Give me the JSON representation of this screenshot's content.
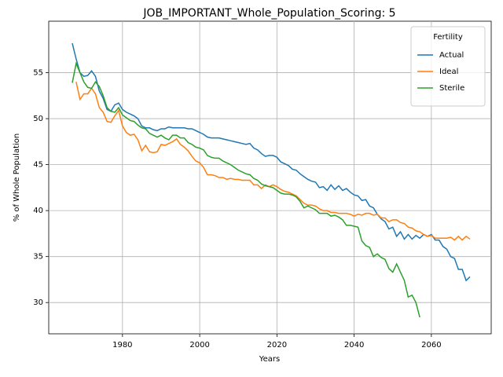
{
  "chart_data": {
    "type": "line",
    "title": "JOB_IMPORTANT_Whole_Population_Scoring: 5",
    "xlabel": "Years",
    "ylabel": "% of Whole Population",
    "xlim": [
      1960.9,
      2075.5
    ],
    "ylim": [
      26.6,
      60.6
    ],
    "xticks": [
      1980,
      2000,
      2020,
      2040,
      2060
    ],
    "yticks": [
      30,
      35,
      40,
      45,
      50,
      55
    ],
    "grid": true,
    "legend_title": "Fertility",
    "legend_loc": "upper right",
    "series": [
      {
        "name": "Actual",
        "color": "#1f77b4",
        "x": [
          1967,
          1968,
          1969,
          1970,
          1971,
          1972,
          1973,
          1974,
          1975,
          1976,
          1977,
          1978,
          1979,
          1980,
          1981,
          1982,
          1983,
          1984,
          1985,
          1986,
          1987,
          1988,
          1989,
          1990,
          1991,
          1992,
          1993,
          1994,
          1995,
          1996,
          1997,
          1998,
          1999,
          2000,
          2001,
          2002,
          2003,
          2004,
          2005,
          2006,
          2007,
          2008,
          2009,
          2010,
          2011,
          2012,
          2013,
          2014,
          2015,
          2016,
          2017,
          2018,
          2019,
          2020,
          2021,
          2022,
          2023,
          2024,
          2025,
          2026,
          2027,
          2028,
          2029,
          2030,
          2031,
          2032,
          2033,
          2034,
          2035,
          2036,
          2037,
          2038,
          2039,
          2040,
          2041,
          2042,
          2043,
          2044,
          2045,
          2046,
          2047,
          2048,
          2049,
          2050,
          2051,
          2052,
          2053,
          2054,
          2055,
          2056,
          2057,
          2058,
          2059,
          2060,
          2061,
          2062,
          2063,
          2064,
          2065,
          2066,
          2067,
          2068,
          2069,
          2070
        ],
        "values": [
          58.2,
          56.5,
          55.0,
          54.6,
          54.7,
          55.2,
          54.6,
          53.0,
          52.2,
          51.0,
          50.8,
          51.5,
          51.7,
          51.0,
          50.7,
          50.5,
          50.3,
          50.0,
          49.2,
          49.0,
          49.0,
          48.8,
          48.7,
          48.9,
          48.9,
          49.1,
          49.0,
          49.0,
          49.0,
          49.0,
          48.9,
          48.9,
          48.7,
          48.5,
          48.3,
          48.0,
          47.9,
          47.9,
          47.9,
          47.8,
          47.7,
          47.6,
          47.5,
          47.4,
          47.3,
          47.2,
          47.3,
          46.8,
          46.6,
          46.2,
          45.9,
          46.0,
          46.0,
          45.8,
          45.3,
          45.1,
          44.9,
          44.5,
          44.4,
          44.0,
          43.7,
          43.4,
          43.2,
          43.1,
          42.5,
          42.6,
          42.2,
          42.8,
          42.3,
          42.7,
          42.2,
          42.4,
          42.0,
          41.7,
          41.6,
          41.1,
          41.2,
          40.5,
          40.3,
          39.6,
          39.1,
          38.8,
          38.0,
          38.2,
          37.2,
          37.7,
          36.9,
          37.4,
          36.9,
          37.3,
          37.0,
          37.4,
          37.2,
          37.4,
          36.8,
          36.8,
          36.1,
          35.8,
          35.0,
          34.8,
          33.6,
          33.6,
          32.4,
          32.8
        ]
      },
      {
        "name": "Ideal",
        "color": "#ff7f0e",
        "x": [
          1968,
          1969,
          1970,
          1971,
          1972,
          1973,
          1974,
          1975,
          1976,
          1977,
          1978,
          1979,
          1980,
          1981,
          1982,
          1983,
          1984,
          1985,
          1986,
          1987,
          1988,
          1989,
          1990,
          1991,
          1992,
          1993,
          1994,
          1995,
          1996,
          1997,
          1998,
          1999,
          2000,
          2001,
          2002,
          2003,
          2004,
          2005,
          2006,
          2007,
          2008,
          2009,
          2010,
          2011,
          2012,
          2013,
          2014,
          2015,
          2016,
          2017,
          2018,
          2019,
          2020,
          2021,
          2022,
          2023,
          2024,
          2025,
          2026,
          2027,
          2028,
          2029,
          2030,
          2031,
          2032,
          2033,
          2034,
          2035,
          2036,
          2037,
          2038,
          2039,
          2040,
          2041,
          2042,
          2043,
          2044,
          2045,
          2046,
          2047,
          2048,
          2049,
          2050,
          2051,
          2052,
          2053,
          2054,
          2055,
          2056,
          2057,
          2058,
          2059,
          2060,
          2061,
          2062,
          2063,
          2064,
          2065,
          2066,
          2067,
          2068,
          2069,
          2070
        ],
        "values": [
          54.0,
          52.1,
          52.7,
          52.7,
          53.3,
          52.7,
          51.2,
          50.7,
          49.7,
          49.6,
          50.3,
          50.9,
          49.2,
          48.5,
          48.2,
          48.3,
          47.7,
          46.5,
          47.1,
          46.4,
          46.3,
          46.4,
          47.2,
          47.1,
          47.3,
          47.5,
          47.8,
          47.2,
          46.9,
          46.5,
          45.9,
          45.4,
          45.2,
          44.7,
          43.9,
          43.9,
          43.8,
          43.6,
          43.6,
          43.4,
          43.5,
          43.4,
          43.4,
          43.3,
          43.3,
          43.3,
          42.8,
          42.8,
          42.4,
          42.8,
          42.6,
          42.8,
          42.6,
          42.3,
          42.1,
          42.0,
          41.8,
          41.6,
          41.2,
          40.8,
          40.6,
          40.6,
          40.5,
          40.2,
          40.0,
          40.0,
          39.8,
          39.8,
          39.7,
          39.7,
          39.7,
          39.6,
          39.4,
          39.6,
          39.5,
          39.7,
          39.7,
          39.5,
          39.6,
          39.2,
          39.2,
          38.8,
          39.0,
          39.0,
          38.7,
          38.6,
          38.2,
          38.1,
          37.8,
          37.7,
          37.4,
          37.2,
          37.3,
          37.0,
          37.0,
          37.0,
          37.0,
          37.1,
          36.8,
          37.2,
          36.8,
          37.2,
          36.9
        ]
      },
      {
        "name": "Sterile",
        "color": "#2ca02c",
        "x": [
          1967,
          1968,
          1969,
          1970,
          1971,
          1972,
          1973,
          1974,
          1975,
          1976,
          1977,
          1978,
          1979,
          1980,
          1981,
          1982,
          1983,
          1984,
          1985,
          1986,
          1987,
          1988,
          1989,
          1990,
          1991,
          1992,
          1993,
          1994,
          1995,
          1996,
          1997,
          1998,
          1999,
          2000,
          2001,
          2002,
          2003,
          2004,
          2005,
          2006,
          2007,
          2008,
          2009,
          2010,
          2011,
          2012,
          2013,
          2014,
          2015,
          2016,
          2017,
          2018,
          2019,
          2020,
          2021,
          2022,
          2023,
          2024,
          2025,
          2026,
          2027,
          2028,
          2029,
          2030,
          2031,
          2032,
          2033,
          2034,
          2035,
          2036,
          2037,
          2038,
          2039,
          2040,
          2041,
          2042,
          2043,
          2044,
          2045,
          2046,
          2047,
          2048,
          2049,
          2050,
          2051,
          2052,
          2053,
          2054,
          2055,
          2056,
          2057
        ],
        "values": [
          53.9,
          56.0,
          55.0,
          54.0,
          53.4,
          53.3,
          54.0,
          53.5,
          52.5,
          51.2,
          50.8,
          50.7,
          51.2,
          50.4,
          50.1,
          49.8,
          49.7,
          49.3,
          49.0,
          48.9,
          48.4,
          48.2,
          48.0,
          48.2,
          47.9,
          47.7,
          48.2,
          48.2,
          47.9,
          47.9,
          47.4,
          47.2,
          46.9,
          46.8,
          46.6,
          46.0,
          45.8,
          45.7,
          45.7,
          45.4,
          45.2,
          45.0,
          44.7,
          44.4,
          44.2,
          44.0,
          43.9,
          43.5,
          43.3,
          42.9,
          42.7,
          42.6,
          42.5,
          42.2,
          41.9,
          41.8,
          41.8,
          41.7,
          41.5,
          41.0,
          40.3,
          40.5,
          40.3,
          40.1,
          39.7,
          39.7,
          39.7,
          39.4,
          39.5,
          39.3,
          39.0,
          38.4,
          38.4,
          38.3,
          38.2,
          36.7,
          36.2,
          36.0,
          35.0,
          35.3,
          34.9,
          34.7,
          33.7,
          33.3,
          34.2,
          33.3,
          32.4,
          30.6,
          30.8,
          30.0,
          28.4
        ]
      }
    ]
  }
}
